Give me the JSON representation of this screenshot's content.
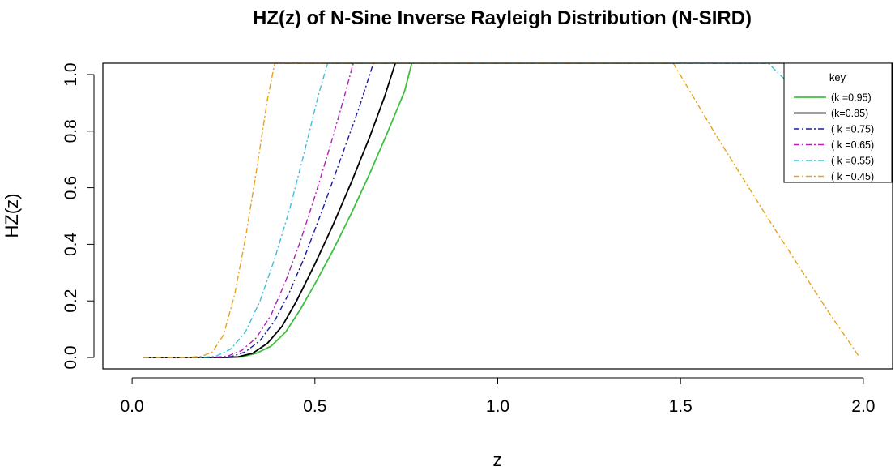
{
  "chart_data": {
    "type": "line",
    "title": "HZ(z) of N-Sine Inverse Rayleigh Distribution (N-SIRD)",
    "xlabel": "z",
    "ylabel": "HZ(z)",
    "xlim": [
      -0.08,
      2.08
    ],
    "ylim": [
      -0.04,
      1.04
    ],
    "x_ticks": [
      {
        "value": 0.0,
        "label": "0.0"
      },
      {
        "value": 0.5,
        "label": "0.5"
      },
      {
        "value": 1.0,
        "label": "1.0"
      },
      {
        "value": 1.5,
        "label": "1.5"
      },
      {
        "value": 2.0,
        "label": "2.0"
      }
    ],
    "y_ticks": [
      {
        "value": 0.0,
        "label": "0.0"
      },
      {
        "value": 0.2,
        "label": "0.2"
      },
      {
        "value": 0.4,
        "label": "0.4"
      },
      {
        "value": 0.6,
        "label": "0.6"
      },
      {
        "value": 0.8,
        "label": "0.8"
      },
      {
        "value": 1.0,
        "label": "1.0"
      }
    ],
    "grid": false,
    "legend": {
      "title": "key",
      "placement": "top-right"
    },
    "series": [
      {
        "name": "(k =0.95)",
        "color": "#3fbf3f",
        "dash": "solid",
        "points": [
          [
            0.03,
            0.0
          ],
          [
            0.26,
            0.0
          ],
          [
            0.3,
            0.002
          ],
          [
            0.34,
            0.015
          ],
          [
            0.38,
            0.04
          ],
          [
            0.42,
            0.09
          ],
          [
            0.46,
            0.17
          ],
          [
            0.5,
            0.26
          ],
          [
            0.55,
            0.38
          ],
          [
            0.6,
            0.51
          ],
          [
            0.65,
            0.65
          ],
          [
            0.7,
            0.8
          ],
          [
            0.745,
            0.94
          ],
          [
            0.765,
            1.04
          ]
        ]
      },
      {
        "name": "(k=0.85)",
        "color": "#000000",
        "dash": "solid",
        "points": [
          [
            0.03,
            0.0
          ],
          [
            0.25,
            0.0
          ],
          [
            0.29,
            0.002
          ],
          [
            0.33,
            0.015
          ],
          [
            0.37,
            0.05
          ],
          [
            0.41,
            0.11
          ],
          [
            0.45,
            0.2
          ],
          [
            0.5,
            0.33
          ],
          [
            0.55,
            0.47
          ],
          [
            0.6,
            0.62
          ],
          [
            0.65,
            0.78
          ],
          [
            0.69,
            0.92
          ],
          [
            0.72,
            1.04
          ]
        ]
      },
      {
        "name": "( k =0.75)",
        "color": "#1a1aa6",
        "dash": "dashdot",
        "points": [
          [
            0.03,
            0.0
          ],
          [
            0.23,
            0.0
          ],
          [
            0.27,
            0.003
          ],
          [
            0.31,
            0.02
          ],
          [
            0.35,
            0.06
          ],
          [
            0.39,
            0.13
          ],
          [
            0.43,
            0.23
          ],
          [
            0.47,
            0.35
          ],
          [
            0.52,
            0.52
          ],
          [
            0.57,
            0.7
          ],
          [
            0.62,
            0.88
          ],
          [
            0.66,
            1.04
          ]
        ]
      },
      {
        "name": "( k =0.65)",
        "color": "#b51fb5",
        "dash": "dashdot",
        "points": [
          [
            0.03,
            0.0
          ],
          [
            0.22,
            0.0
          ],
          [
            0.26,
            0.004
          ],
          [
            0.3,
            0.025
          ],
          [
            0.34,
            0.07
          ],
          [
            0.38,
            0.15
          ],
          [
            0.42,
            0.27
          ],
          [
            0.46,
            0.41
          ],
          [
            0.5,
            0.57
          ],
          [
            0.54,
            0.74
          ],
          [
            0.58,
            0.92
          ],
          [
            0.605,
            1.04
          ]
        ]
      },
      {
        "name": "( k =0.55)",
        "color": "#3ec0d8",
        "dash": "dashdot",
        "points": [
          [
            0.03,
            0.0
          ],
          [
            0.19,
            0.0
          ],
          [
            0.23,
            0.005
          ],
          [
            0.27,
            0.03
          ],
          [
            0.31,
            0.09
          ],
          [
            0.35,
            0.2
          ],
          [
            0.39,
            0.35
          ],
          [
            0.43,
            0.52
          ],
          [
            0.47,
            0.72
          ],
          [
            0.51,
            0.93
          ],
          [
            0.535,
            1.04
          ],
          [
            1.74,
            1.04
          ],
          [
            1.85,
            0.9
          ],
          [
            1.87,
            0.87
          ]
        ]
      },
      {
        "name": "( k =0.45)",
        "color": "#e8a317",
        "dash": "dashdot",
        "points": [
          [
            0.03,
            0.0
          ],
          [
            0.15,
            0.0
          ],
          [
            0.19,
            0.004
          ],
          [
            0.22,
            0.02
          ],
          [
            0.25,
            0.08
          ],
          [
            0.28,
            0.22
          ],
          [
            0.31,
            0.42
          ],
          [
            0.34,
            0.66
          ],
          [
            0.37,
            0.91
          ],
          [
            0.39,
            1.04
          ],
          [
            1.48,
            1.04
          ],
          [
            1.6,
            0.78
          ],
          [
            1.75,
            0.47
          ],
          [
            1.9,
            0.17
          ],
          [
            1.99,
            0.0
          ]
        ]
      },
      {
        "name": "",
        "color": "#b51fb5",
        "dash": "dashdot",
        "points": [
          [
            1.82,
            1.04
          ],
          [
            1.93,
            0.95
          ]
        ]
      },
      {
        "name": "",
        "color": "#000000",
        "dash": "solid",
        "points": [
          [
            1.96,
            1.04
          ],
          [
            2.0,
            1.0
          ]
        ]
      }
    ]
  }
}
